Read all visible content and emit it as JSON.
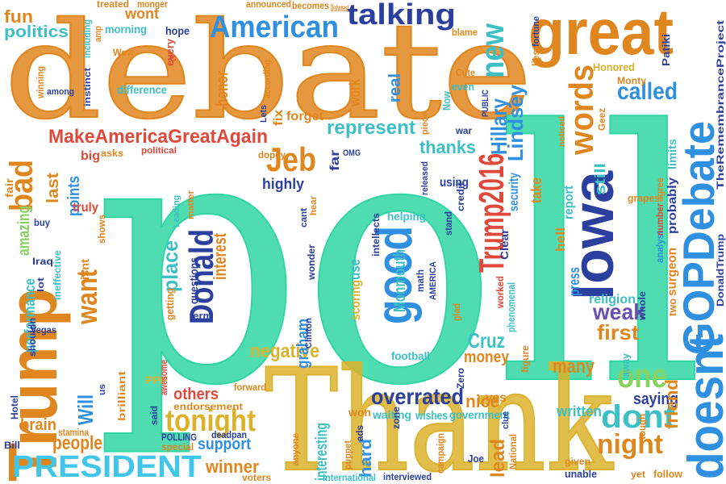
{
  "words": [
    "debate",
    "poll",
    "Thank",
    "Trump",
    "GOPDebate",
    "doesnt",
    "great",
    "Iowa",
    "good",
    "Trump2016",
    "Donald",
    "American",
    "talking",
    "new",
    "words",
    "Lindsey",
    "called",
    "MakeAmericaGreatAgain",
    "Jeb",
    "bad",
    "represent",
    "thanks",
    "Hillary",
    "weak",
    "first",
    "one",
    "dont",
    "night",
    "many",
    "saying",
    "friend",
    "PRESIDENT",
    "tonight",
    "people",
    "brain",
    "support",
    "winner",
    "overrated",
    "nice",
    "negative",
    "others",
    "endorsement",
    "want",
    "interest",
    "place",
    "graham",
    "Cruz",
    "money",
    "interesting",
    "hard",
    "lead",
    "Will",
    "fun",
    "politics",
    "wont",
    "honor",
    "fix",
    "forget",
    "highly",
    "real",
    "work",
    "last",
    "points",
    "amazing",
    "performance",
    "Monmouth",
    "use",
    "scoring",
    "still",
    "report",
    "take",
    "press",
    "hell",
    "religion",
    "written",
    "yes",
    "government",
    "wishes",
    "won",
    "waiting",
    "security",
    "surgeon",
    "probably",
    "limits",
    "TheRemembranceProject",
    "DonaldTrump",
    "Patiki",
    "Honored",
    "Monty",
    "two",
    "analyst",
    "number",
    "grapes",
    "agree",
    "follow",
    "unable",
    "yet",
    "given",
    "tough",
    "away",
    "whole",
    "PPP",
    "awesome",
    "POLLING",
    "deadpan",
    "special",
    "Hotel",
    "shouldn",
    "Vegas",
    "Iraq",
    "lot",
    "ineffective",
    "isnt",
    "truly",
    "buy",
    "big",
    "asks",
    "political",
    "dopey",
    "OMG",
    "fair",
    "difference",
    "among",
    "winning",
    "according",
    "Lets",
    "announced",
    "becomes",
    "Dishonest",
    "treated",
    "monger",
    "including",
    "amp",
    "morning",
    "hope",
    "every",
    "Wow",
    "instinct",
    "blame",
    "Cute",
    "fortune",
    "even",
    "Now",
    "PUBLIC",
    "lies",
    "noticed",
    "Geez",
    "Clear",
    "phenomenal",
    "worked",
    "credit",
    "released",
    "war",
    "piece",
    "using",
    "helping",
    "stand",
    "math",
    "AMERICA",
    "football",
    "glad",
    "Zero",
    "figure",
    "campaign",
    "Joe",
    "zone",
    "ads",
    "puppet",
    "anyone",
    "voters",
    "International",
    "interviewed",
    "National",
    "clue",
    "forward",
    "Clinton",
    "wonder",
    "hear",
    "cant",
    "intellects",
    "questions",
    "getting",
    "term",
    "Leading",
    "matter",
    "shows",
    "stamina",
    "said",
    "Bill",
    "brilliant",
    "us",
    "far",
    "C"
  ]
}
